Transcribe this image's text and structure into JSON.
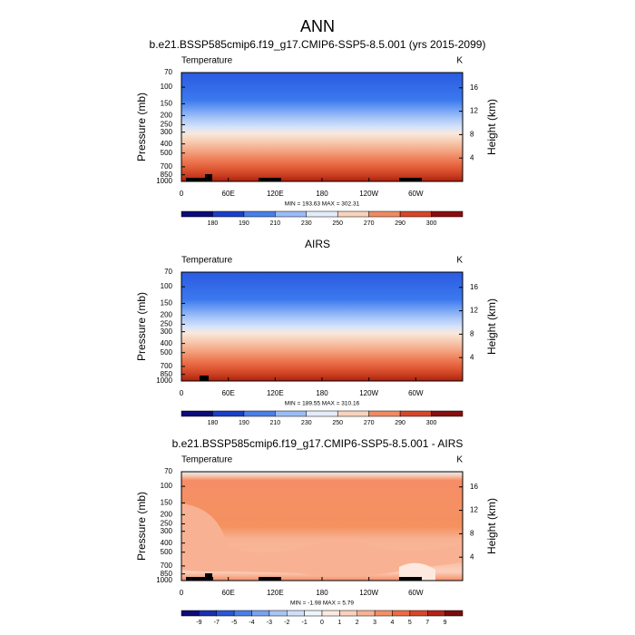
{
  "title": "ANN",
  "chart_data": [
    {
      "type": "contour",
      "title": "b.e21.BSSP585cmip6.f19_g17.CMIP6-SSP5-8.5.001 (yrs 2015-2099)",
      "left_label": "Temperature",
      "right_label": "K",
      "ylabel": "Pressure (mb)",
      "y2label": "Height (km)",
      "xlim": [
        0,
        360
      ],
      "xticks": [
        0,
        {
          "value": 60,
          "label": "60E"
        },
        {
          "value": 120,
          "label": "120E"
        },
        180,
        {
          "value": 240,
          "label": "120W"
        },
        {
          "value": 300,
          "label": "60W"
        }
      ],
      "ylim": [
        1000,
        70
      ],
      "yticks": [
        70,
        100,
        150,
        200,
        250,
        300,
        400,
        500,
        700,
        850,
        1000
      ],
      "log_y": true,
      "y2lim": [
        0,
        18.6
      ],
      "y2ticks": [
        4,
        8,
        12,
        16
      ],
      "stats": "MIN = 193.63  MAX = 302.31",
      "colorbar": {
        "levels": [
          180,
          190,
          210,
          230,
          250,
          270,
          290,
          300
        ],
        "colors": [
          "#0b0b7a",
          "#1b3fc8",
          "#4a7ee8",
          "#9abcf6",
          "#e4ecfb",
          "#f8d2bb",
          "#ef8a62",
          "#d5462a",
          "#8a0d0d"
        ]
      }
    },
    {
      "type": "contour",
      "title": "AIRS",
      "left_label": "Temperature",
      "right_label": "K",
      "ylabel": "Pressure (mb)",
      "y2label": "Height (km)",
      "xlim": [
        0,
        360
      ],
      "xticks": [
        0,
        {
          "value": 60,
          "label": "60E"
        },
        {
          "value": 120,
          "label": "120E"
        },
        180,
        {
          "value": 240,
          "label": "120W"
        },
        {
          "value": 300,
          "label": "60W"
        }
      ],
      "ylim": [
        1000,
        70
      ],
      "yticks": [
        70,
        100,
        150,
        200,
        250,
        300,
        400,
        500,
        700,
        850,
        1000
      ],
      "log_y": true,
      "y2lim": [
        0,
        18.6
      ],
      "y2ticks": [
        4,
        8,
        12,
        16
      ],
      "stats": "MIN = 189.55  MAX = 310.16",
      "colorbar": {
        "levels": [
          180,
          190,
          210,
          230,
          250,
          270,
          290,
          300
        ],
        "colors": [
          "#0b0b7a",
          "#1b3fc8",
          "#4a7ee8",
          "#9abcf6",
          "#e4ecfb",
          "#f8d2bb",
          "#ef8a62",
          "#d5462a",
          "#8a0d0d"
        ]
      }
    },
    {
      "type": "contour",
      "title": "b.e21.BSSP585cmip6.f19_g17.CMIP6-SSP5-8.5.001 - AIRS",
      "left_label": "Temperature",
      "right_label": "K",
      "ylabel": "Pressure (mb)",
      "y2label": "Height (km)",
      "xlim": [
        0,
        360
      ],
      "xticks": [
        0,
        {
          "value": 60,
          "label": "60E"
        },
        {
          "value": 120,
          "label": "120E"
        },
        180,
        {
          "value": 240,
          "label": "120W"
        },
        {
          "value": 300,
          "label": "60W"
        }
      ],
      "ylim": [
        1000,
        70
      ],
      "yticks": [
        70,
        100,
        150,
        200,
        250,
        300,
        400,
        500,
        700,
        850,
        1000
      ],
      "log_y": true,
      "y2lim": [
        0,
        18.6
      ],
      "y2ticks": [
        4,
        8,
        12,
        16
      ],
      "stats": "MIN =  -1.98  MAX =   5.79",
      "colorbar": {
        "levels": [
          -9,
          -7,
          -5,
          -4,
          -3,
          -2,
          -1,
          0,
          1,
          2,
          3,
          4,
          5,
          7,
          9
        ],
        "colors": [
          "#0b0b7a",
          "#1b2fb0",
          "#2a56d8",
          "#4a7ee8",
          "#79a3f1",
          "#a8c4f7",
          "#cfdffb",
          "#eef4fd",
          "#fde9df",
          "#fbd0bc",
          "#f8b293",
          "#f58e67",
          "#ee6a42",
          "#d9452a",
          "#b2231a",
          "#7a0b0b"
        ]
      }
    }
  ]
}
